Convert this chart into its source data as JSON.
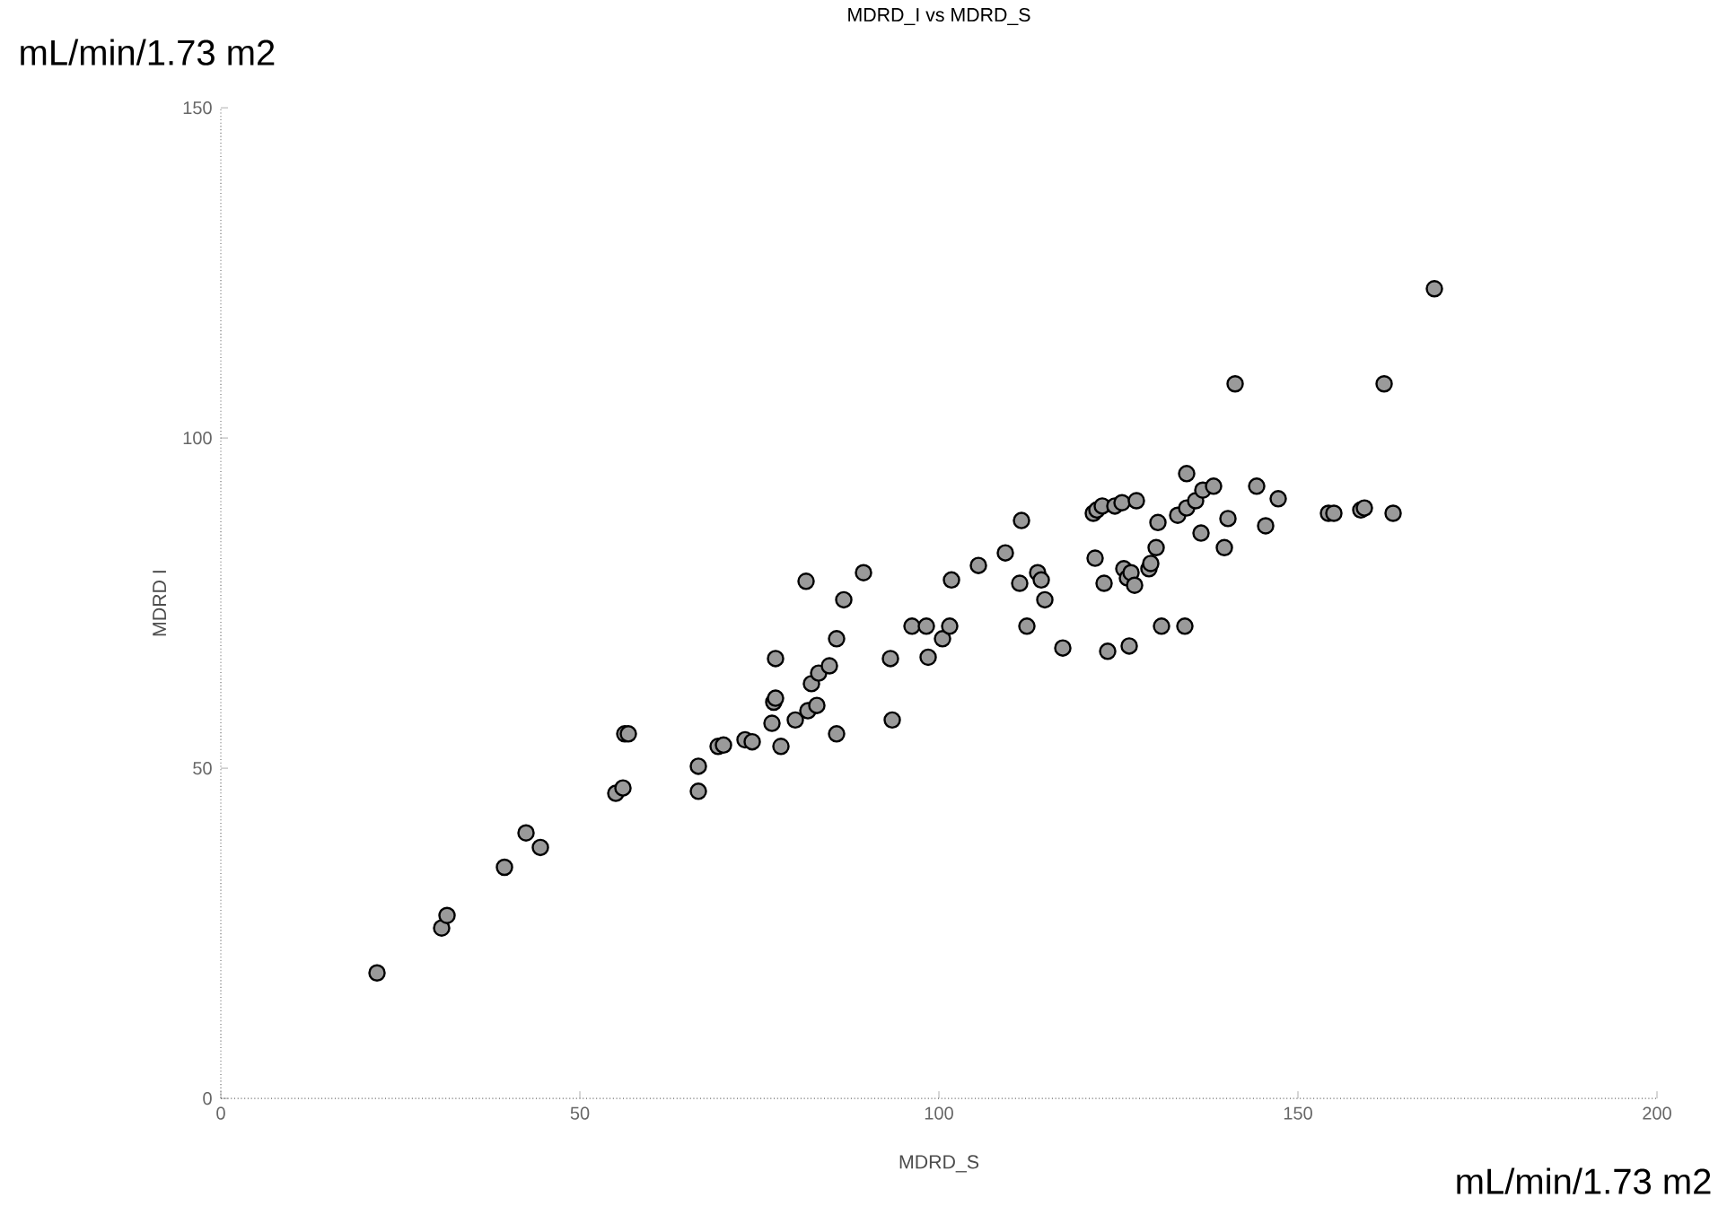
{
  "chart_data": {
    "type": "scatter",
    "title": "MDRD_I vs MDRD_S",
    "xlabel": "MDRD_S",
    "ylabel": "MDRD I",
    "annotations": [
      "mL/min/1.73 m2",
      "mL/min/1.73 m2"
    ],
    "xlim": [
      0,
      200
    ],
    "ylim": [
      0,
      150
    ],
    "xticks": [
      0,
      50,
      100,
      150,
      200
    ],
    "yticks": [
      0,
      50,
      100,
      150
    ],
    "grid": false,
    "series": [
      {
        "color": "#9a9a9a",
        "x": [
          21.75,
          30.75,
          31.5,
          39.5,
          42.5,
          44.5,
          55,
          56,
          56.25,
          56.75,
          66.5,
          66.5,
          69.25,
          70,
          73,
          74,
          76.75,
          77,
          77.25,
          77.25,
          78,
          80,
          81.75,
          83,
          82.25,
          83.25,
          81.5,
          84.75,
          85.75,
          85.75,
          86.75,
          89.5,
          93.25,
          93.5,
          96.25,
          98.25,
          98.5,
          100.5,
          101.5,
          101.75,
          105.5,
          109.25,
          111.25,
          111.5,
          112.25,
          113.75,
          114.25,
          114.75,
          117.25,
          121.5,
          122,
          122.75,
          121.75,
          123,
          123.5,
          124.5,
          125.5,
          125.75,
          126.25,
          126.75,
          127.25,
          126.5,
          127.5,
          129.25,
          129.5,
          130.25,
          130.5,
          131,
          134.25,
          133.25,
          134.5,
          134.5,
          135.75,
          136.75,
          136.5,
          138.25,
          139.75,
          140.25,
          141.25,
          144.25,
          147.25,
          145.5,
          154.25,
          155,
          158.75,
          159.25,
          163.25,
          162,
          169
        ],
        "values": [
          19,
          25.8,
          27.7,
          35,
          40.2,
          38,
          46.2,
          47,
          55.2,
          55.2,
          50.3,
          46.5,
          53.3,
          53.5,
          54.3,
          54,
          56.8,
          60,
          60.6,
          66.6,
          53.3,
          57.3,
          58.7,
          59.5,
          62.8,
          64.4,
          78.3,
          65.5,
          55.2,
          69.6,
          75.5,
          79.6,
          66.6,
          57.3,
          71.5,
          71.5,
          66.8,
          69.6,
          71.5,
          78.5,
          80.7,
          82.6,
          78,
          87.5,
          71.5,
          79.6,
          78.5,
          75.5,
          68.2,
          88.6,
          89.1,
          89.7,
          81.8,
          78,
          67.7,
          89.7,
          90.2,
          80.2,
          78.8,
          79.6,
          77.7,
          68.5,
          90.5,
          80.2,
          81,
          83.4,
          87.2,
          71.5,
          71.5,
          88.3,
          89.4,
          94.6,
          90.5,
          92.1,
          85.6,
          92.7,
          83.4,
          87.8,
          108.2,
          92.7,
          90.8,
          86.7,
          88.6,
          88.6,
          89.1,
          89.4,
          88.6,
          108.2,
          122.6
        ]
      }
    ]
  }
}
